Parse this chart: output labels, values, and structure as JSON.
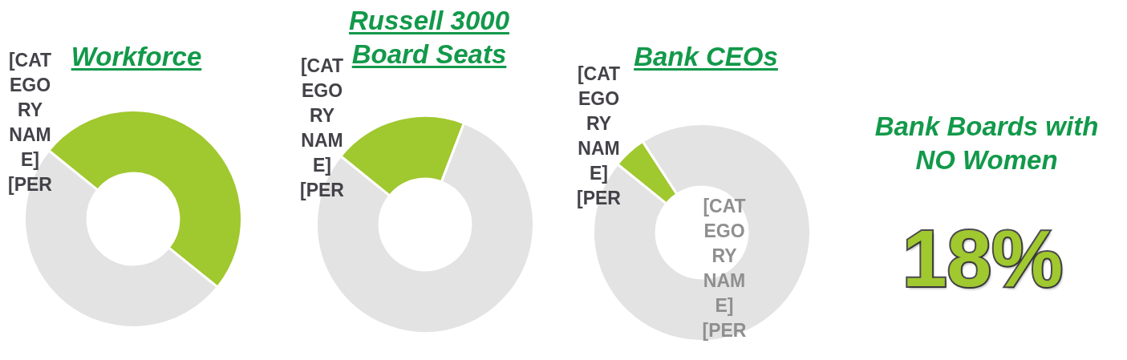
{
  "chart_data": [
    {
      "type": "donut",
      "title": "Workforce",
      "categories": [
        null,
        null
      ],
      "values": [
        50,
        50
      ],
      "colors": [
        "#a0c82f",
        "#e3e3e3"
      ],
      "value_labels": [
        "[CATEGORY NAME] [PER",
        null
      ],
      "legend": false
    },
    {
      "type": "donut",
      "title": "Russell 3000 Board Seats",
      "categories": [
        null,
        null
      ],
      "values": [
        20,
        80
      ],
      "colors": [
        "#a0c82f",
        "#e3e3e3"
      ],
      "value_labels": [
        "[CATEGORY NAME] [PER",
        null
      ],
      "legend": false
    },
    {
      "type": "donut",
      "title": "Bank CEOs",
      "categories": [
        null,
        null
      ],
      "values": [
        5,
        95
      ],
      "colors": [
        "#a0c82f",
        "#e3e3e3"
      ],
      "value_labels": [
        "[CATEGORY NAME] [PER",
        "[CATEGORY NAME] [PER"
      ],
      "legend": false
    },
    {
      "type": "other",
      "title": "Bank Boards with NO Women",
      "annotations": [
        "18%"
      ]
    }
  ]
}
